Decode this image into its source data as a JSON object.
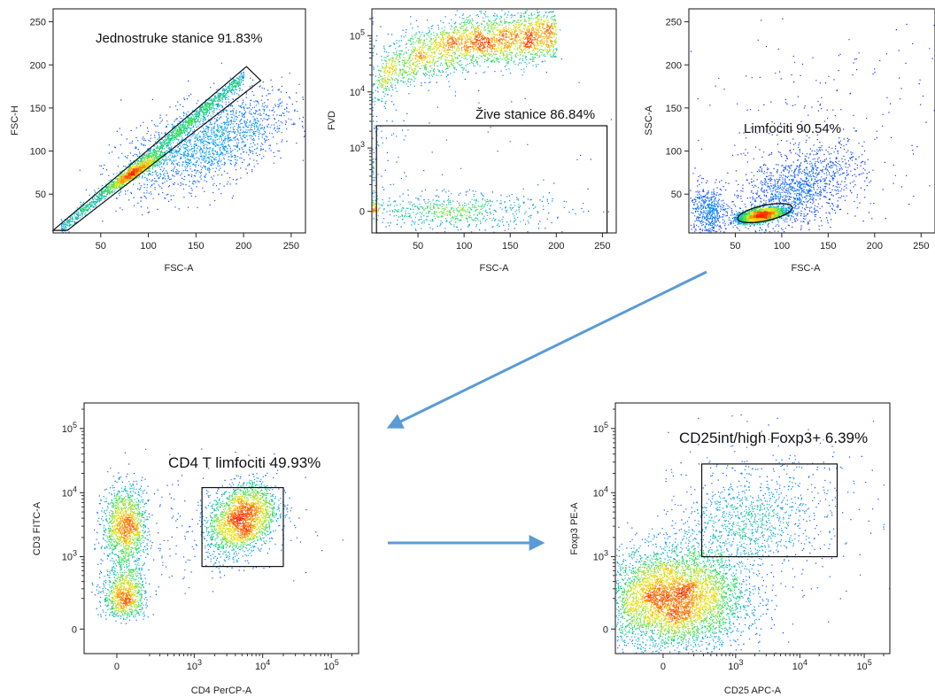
{
  "colors": {
    "density_low": "#1a1aff",
    "density_mid": "#22dd55",
    "density_high": "#ff2a00",
    "gate": "#111111",
    "arrow": "#5b9bd5"
  },
  "chart_data": [
    {
      "type": "scatter",
      "id": "p1",
      "xlabel": "FSC-A",
      "ylabel": "FSC-H",
      "xscale": "linear",
      "yscale": "linear",
      "xlim": [
        0,
        265
      ],
      "ylim": [
        5,
        265
      ],
      "xticks": [
        {
          "v": 50,
          "t": "50"
        },
        {
          "v": 100,
          "t": "100"
        },
        {
          "v": 150,
          "t": "150"
        },
        {
          "v": 200,
          "t": "200"
        },
        {
          "v": 250,
          "t": "250"
        }
      ],
      "yticks": [
        {
          "v": 50,
          "t": "50"
        },
        {
          "v": 100,
          "t": "100"
        },
        {
          "v": 150,
          "t": "150"
        },
        {
          "v": 200,
          "t": "200"
        },
        {
          "v": 250,
          "t": "250"
        }
      ],
      "gate": {
        "label": "Jednostruke stanice 91.83%",
        "polygon": [
          [
            0,
            8
          ],
          [
            15,
            8
          ],
          [
            218,
            182
          ],
          [
            203,
            198
          ]
        ]
      },
      "populations": [
        {
          "kind": "diag",
          "x0": 8,
          "x1": 200,
          "slope": 0.92,
          "intercept": 3,
          "spread": 4,
          "n": 1500
        },
        {
          "cx": 85,
          "cy": 75,
          "sx": 14,
          "sy": 10,
          "rho": 0.95,
          "n": 900
        },
        {
          "cx": 160,
          "cy": 110,
          "sx": 45,
          "sy": 30,
          "rho": 0.6,
          "n": 2000
        }
      ]
    },
    {
      "type": "scatter",
      "id": "p2",
      "xlabel": "FSC-A",
      "ylabel": "FVD",
      "xscale": "linear",
      "yscale": "biexp",
      "xlim": [
        0,
        265
      ],
      "ylim": [
        -150,
        300000
      ],
      "xticks": [
        {
          "v": 50,
          "t": "50"
        },
        {
          "v": 100,
          "t": "100"
        },
        {
          "v": 150,
          "t": "150"
        },
        {
          "v": 200,
          "t": "200"
        },
        {
          "v": 250,
          "t": "250"
        }
      ],
      "yticks": [
        {
          "v": 0,
          "t": "0",
          "sup": ""
        },
        {
          "v": 1000,
          "t": "10",
          "sup": "3"
        },
        {
          "v": 10000,
          "t": "10",
          "sup": "4"
        },
        {
          "v": 100000,
          "t": "10",
          "sup": "5"
        }
      ],
      "gate": {
        "label": "Žive stanice 86.84%",
        "rect": [
          [
            5,
            -150
          ],
          [
            255,
            2500
          ]
        ]
      },
      "populations": [
        {
          "cx": 72,
          "cy": 380,
          "sx": 14,
          "sy": 1.6,
          "rho": 0.2,
          "log": true,
          "n": 3500
        },
        {
          "cx": 95,
          "cy": 500,
          "sx": 35,
          "sy": 3.5,
          "rho": 0.1,
          "log": true,
          "n": 1200
        },
        {
          "kind": "curve",
          "x0": 5,
          "x1": 200,
          "n": 2800
        },
        {
          "cx": 90,
          "cy": 0,
          "sx": 50,
          "sy": 60,
          "rho": 0,
          "n": 600
        }
      ]
    },
    {
      "type": "scatter",
      "id": "p3",
      "xlabel": "FSC-A",
      "ylabel": "SSC-A",
      "xscale": "linear",
      "yscale": "linear",
      "xlim": [
        0,
        265
      ],
      "ylim": [
        5,
        265
      ],
      "xticks": [
        {
          "v": 50,
          "t": "50"
        },
        {
          "v": 100,
          "t": "100"
        },
        {
          "v": 150,
          "t": "150"
        },
        {
          "v": 200,
          "t": "200"
        },
        {
          "v": 250,
          "t": "250"
        }
      ],
      "yticks": [
        {
          "v": 50,
          "t": "50"
        },
        {
          "v": 100,
          "t": "100"
        },
        {
          "v": 150,
          "t": "150"
        },
        {
          "v": 200,
          "t": "200"
        },
        {
          "v": 250,
          "t": "250"
        }
      ],
      "gate": {
        "label": "Limfociti 90.54%",
        "ellipse": {
          "cx": 82,
          "cy": 28,
          "rx": 30,
          "ry": 9,
          "angle": -12
        }
      },
      "populations": [
        {
          "cx": 78,
          "cy": 26,
          "sx": 12,
          "sy": 4,
          "rho": 0.5,
          "n": 2800
        },
        {
          "cx": 115,
          "cy": 55,
          "sx": 35,
          "sy": 25,
          "rho": 0.5,
          "n": 1400
        },
        {
          "cx": 20,
          "cy": 30,
          "sx": 10,
          "sy": 15,
          "rho": 0,
          "n": 500
        },
        {
          "cx": 130,
          "cy": 130,
          "sx": 70,
          "sy": 70,
          "rho": 0,
          "n": 250
        }
      ]
    },
    {
      "type": "scatter",
      "id": "p4",
      "xlabel": "CD4 PerCP-A",
      "ylabel": "CD3 FITC-A",
      "xscale": "biexp",
      "yscale": "biexp",
      "xlim": [
        -200,
        250000
      ],
      "ylim": [
        -150,
        250000
      ],
      "xticks": [
        {
          "v": 0,
          "t": "0",
          "sup": ""
        },
        {
          "v": 1000,
          "t": "10",
          "sup": "3"
        },
        {
          "v": 10000,
          "t": "10",
          "sup": "4"
        },
        {
          "v": 100000,
          "t": "10",
          "sup": "5"
        }
      ],
      "yticks": [
        {
          "v": 0,
          "t": "0",
          "sup": ""
        },
        {
          "v": 1000,
          "t": "10",
          "sup": "3"
        },
        {
          "v": 10000,
          "t": "10",
          "sup": "4"
        },
        {
          "v": 100000,
          "t": "10",
          "sup": "5"
        }
      ],
      "gate": {
        "label": "CD4 T limfociti 49.93%",
        "rect": [
          [
            1300,
            700
          ],
          [
            20000,
            12000
          ]
        ]
      },
      "populations": [
        {
          "cx": 5000,
          "cy": 4000,
          "sx": 0.25,
          "sy": 0.28,
          "rho": 0.3,
          "log": true,
          "n": 2200
        },
        {
          "cx": 40,
          "cy": 3000,
          "sx": 60,
          "sy": 0.3,
          "rho": 0,
          "logy": true,
          "n": 1300
        },
        {
          "cx": 40,
          "cy": 230,
          "sx": 60,
          "sy": 0.25,
          "rho": 0,
          "logy": true,
          "n": 900
        },
        {
          "cx": 500,
          "cy": 2500,
          "sx": 1.0,
          "sy": 0.5,
          "rho": 0,
          "log": true,
          "n": 250
        }
      ]
    },
    {
      "type": "scatter",
      "id": "p5",
      "xlabel": "CD25 APC-A",
      "ylabel": "Foxp3 PE-A",
      "xscale": "biexp",
      "yscale": "biexp",
      "xlim": [
        -400,
        250000
      ],
      "ylim": [
        -150,
        250000
      ],
      "xticks": [
        {
          "v": 0,
          "t": "0",
          "sup": ""
        },
        {
          "v": 1000,
          "t": "10",
          "sup": "3"
        },
        {
          "v": 10000,
          "t": "10",
          "sup": "4"
        },
        {
          "v": 100000,
          "t": "10",
          "sup": "5"
        }
      ],
      "yticks": [
        {
          "v": 0,
          "t": "0",
          "sup": ""
        },
        {
          "v": 1000,
          "t": "10",
          "sup": "3"
        },
        {
          "v": 10000,
          "t": "10",
          "sup": "4"
        },
        {
          "v": 100000,
          "t": "10",
          "sup": "5"
        }
      ],
      "gate": {
        "label": "CD25int/high Foxp3+ 6.39%",
        "rect": [
          [
            280,
            1000
          ],
          [
            38000,
            28000
          ]
        ]
      },
      "populations": [
        {
          "cx": 50,
          "cy": 200,
          "sx": 1.3,
          "sy": 0.9,
          "rho": 0,
          "asinh": true,
          "n": 5000
        },
        {
          "cx": 1500,
          "cy": 3500,
          "sx": 0.5,
          "sy": 0.35,
          "rho": 0.2,
          "log": true,
          "n": 700
        },
        {
          "cx": 2000,
          "cy": 5000,
          "sx": 0.9,
          "sy": 0.6,
          "rho": 0.1,
          "log": true,
          "n": 450
        }
      ]
    }
  ]
}
